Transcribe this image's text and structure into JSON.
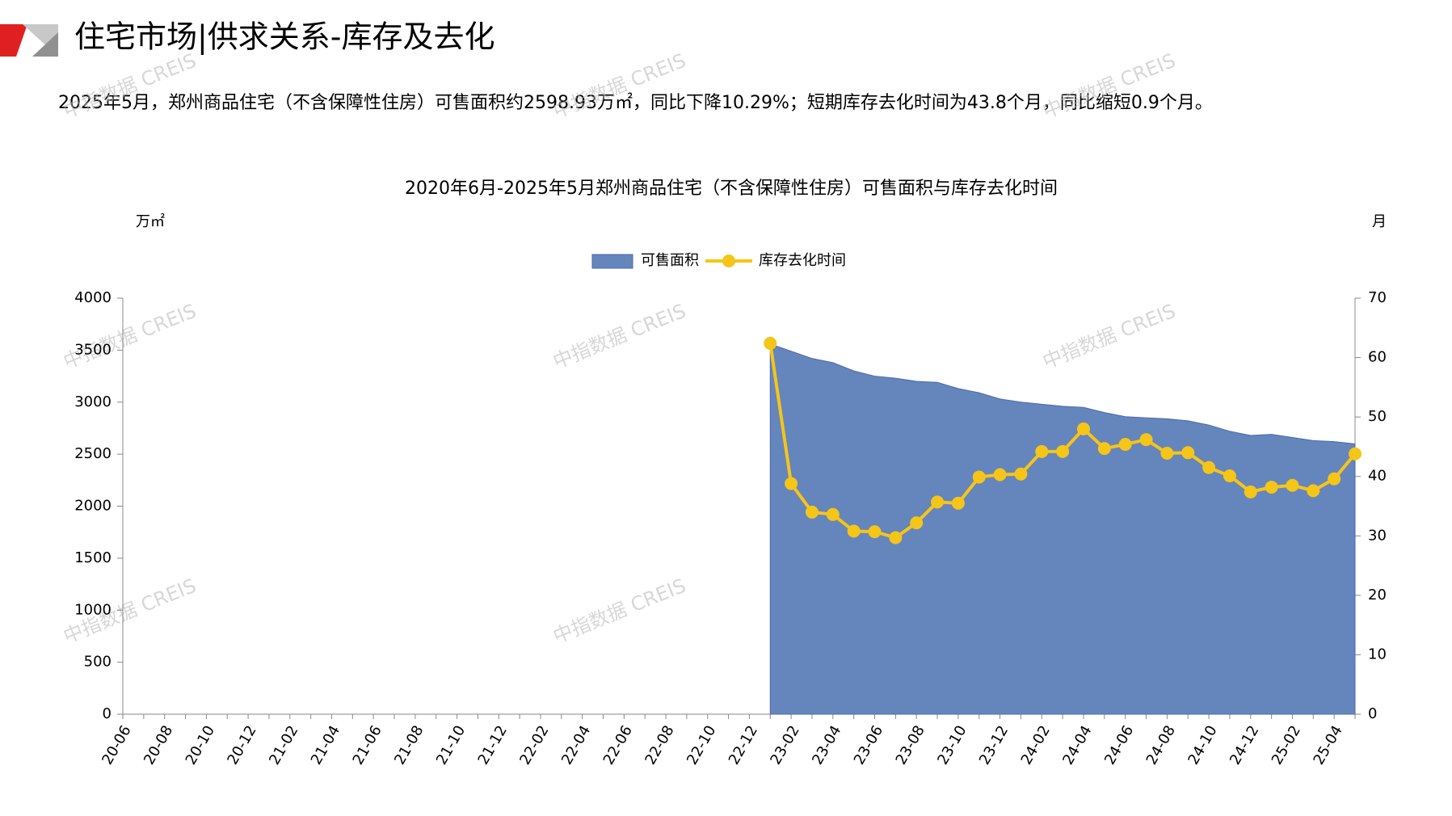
{
  "header": {
    "title": "住宅市场|供求关系-库存及去化",
    "summary": "2025年5月，郑州商品住宅（不含保障性住房）可售面积约2598.93万㎡，同比下降10.29%；短期库存去化时间为43.8个月，同比缩短0.9个月。",
    "watermark": "中指数据 CREIS"
  },
  "chart_data": {
    "type": "area-line",
    "title": "2020年6月-2025年5月郑州商品住宅（不含保障性住房）可售面积与库存去化时间",
    "y_label": "万㎡",
    "y2_label": "月",
    "categories": [
      "20-06",
      null,
      "20-08",
      null,
      "20-10",
      null,
      "20-12",
      null,
      "21-02",
      null,
      "21-04",
      null,
      "21-06",
      null,
      "21-08",
      null,
      "21-10",
      null,
      "21-12",
      null,
      "22-02",
      null,
      "22-04",
      null,
      "22-06",
      null,
      "22-08",
      null,
      "22-10",
      null,
      "22-12",
      null,
      "23-02",
      null,
      "23-04",
      null,
      "23-06",
      null,
      "23-08",
      null,
      "23-10",
      null,
      "23-12",
      null,
      "24-02",
      null,
      "24-04",
      null,
      "24-06",
      null,
      "24-08",
      null,
      "24-10",
      null,
      "24-12",
      null,
      "25-02",
      null,
      "25-04",
      null
    ],
    "series": [
      {
        "name": "可售面积",
        "color": "#6585bd",
        "type": "area",
        "values": [
          null,
          null,
          null,
          null,
          null,
          null,
          null,
          null,
          null,
          null,
          null,
          null,
          null,
          null,
          null,
          null,
          null,
          null,
          null,
          null,
          null,
          null,
          null,
          null,
          null,
          null,
          null,
          null,
          null,
          null,
          null,
          3560,
          3490,
          3420,
          3380,
          3300,
          3250,
          3230,
          3200,
          3190,
          3130,
          3090,
          3030,
          3000,
          2980,
          2960,
          2950,
          2900,
          2860,
          2850,
          2840,
          2820,
          2780,
          2720,
          2680,
          2690,
          2660,
          2630,
          2620,
          2598.93
        ]
      },
      {
        "name": "库存去化时间",
        "color": "#f5c518",
        "type": "line",
        "axis": "y2",
        "values": [
          null,
          null,
          null,
          null,
          null,
          null,
          null,
          null,
          null,
          null,
          null,
          null,
          null,
          null,
          null,
          null,
          null,
          null,
          null,
          null,
          null,
          null,
          null,
          null,
          null,
          null,
          null,
          null,
          null,
          null,
          null,
          62.4,
          38.8,
          34.0,
          33.6,
          30.8,
          30.7,
          29.7,
          32.2,
          35.7,
          35.5,
          39.9,
          40.3,
          40.4,
          44.2,
          44.2,
          48.0,
          44.7,
          45.4,
          46.2,
          43.9,
          44.0,
          41.5,
          40.1,
          37.4,
          38.2,
          38.5,
          37.6,
          39.6,
          43.8
        ]
      }
    ],
    "ylim": [
      0,
      4000
    ],
    "yticks": [
      0,
      500,
      1000,
      1500,
      2000,
      2500,
      3000,
      3500,
      4000
    ],
    "y2lim": [
      0,
      70
    ],
    "y2ticks": [
      0,
      10,
      20,
      30,
      40,
      50,
      60,
      70
    ],
    "legend": "top",
    "grid": false
  }
}
